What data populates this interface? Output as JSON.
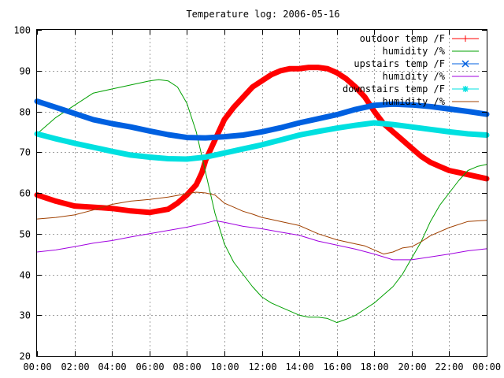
{
  "chart_data": {
    "type": "line",
    "title": "Temperature log: 2006-05-16",
    "xlabel": "",
    "ylabel": "",
    "xlim": [
      0,
      24
    ],
    "ylim": [
      20,
      100
    ],
    "grid": true,
    "legend_position": "top-right",
    "x_tick_labels": [
      "00:00",
      "02:00",
      "04:00",
      "06:00",
      "08:00",
      "10:00",
      "12:00",
      "14:00",
      "16:00",
      "18:00",
      "20:00",
      "22:00",
      "00:00"
    ],
    "y_tick_labels": [
      "20",
      "30",
      "40",
      "50",
      "60",
      "70",
      "80",
      "90",
      "100"
    ],
    "series": [
      {
        "name": "outdoor temp /F",
        "color": "#ff0000",
        "marker": "plus",
        "thick": true,
        "x": [
          0,
          1,
          2,
          3,
          4,
          5,
          6,
          7,
          7.5,
          8,
          8.5,
          8.8,
          9,
          9.5,
          10,
          10.5,
          11,
          11.5,
          12,
          12.5,
          13,
          13.5,
          14,
          14.5,
          15,
          15.5,
          16,
          16.5,
          17,
          17.5,
          18,
          18.5,
          19,
          19.5,
          20,
          20.5,
          21,
          21.5,
          22,
          22.5,
          23,
          23.5,
          24
        ],
        "y": [
          59.5,
          58,
          56.8,
          56.5,
          56.2,
          55.6,
          55.2,
          56,
          57.5,
          59.5,
          62,
          65,
          68,
          73,
          78,
          81,
          83.5,
          86,
          87.5,
          89,
          90,
          90.5,
          90.5,
          90.8,
          90.8,
          90.5,
          89.5,
          88,
          86,
          83.5,
          80,
          77,
          75,
          73,
          71,
          69,
          67.5,
          66.5,
          65.5,
          65,
          64.5,
          64,
          63.5
        ]
      },
      {
        "name": "humidity /%",
        "color": "#00a000",
        "thick": false,
        "x": [
          0,
          1,
          2,
          3,
          4,
          5,
          6,
          6.5,
          7,
          7.5,
          8,
          8.5,
          9,
          9.5,
          10,
          10.5,
          11,
          11.5,
          12,
          12.5,
          13,
          13.5,
          14,
          14.5,
          15,
          15.5,
          16,
          16.5,
          17,
          17.5,
          18,
          18.5,
          19,
          19.5,
          20,
          20.5,
          21,
          21.5,
          22,
          22.5,
          23,
          23.5,
          24
        ],
        "y": [
          74.5,
          78.5,
          81.5,
          84.5,
          85.5,
          86.5,
          87.5,
          87.8,
          87.5,
          86,
          82,
          75,
          65,
          55,
          47.5,
          43,
          40,
          37,
          34.5,
          33,
          32,
          31,
          30,
          29.5,
          29.5,
          29.2,
          28.2,
          29,
          30,
          31.5,
          33,
          35,
          37,
          40,
          44,
          48,
          53,
          57,
          60,
          63,
          65.5,
          66.5,
          67
        ]
      },
      {
        "name": "upstairs temp /F",
        "color": "#0060e0",
        "marker": "cross",
        "thick": true,
        "x": [
          0,
          1,
          2,
          3,
          4,
          5,
          6,
          7,
          8,
          9,
          10,
          11,
          12,
          13,
          14,
          15,
          16,
          17,
          18,
          19,
          20,
          21,
          22,
          23,
          24
        ],
        "y": [
          82.5,
          81,
          79.5,
          78,
          77,
          76.2,
          75.2,
          74.3,
          73.6,
          73.5,
          73.8,
          74.2,
          75,
          76,
          77.2,
          78.2,
          79.2,
          80.5,
          81.5,
          81.8,
          81.6,
          81.2,
          80.6,
          80,
          79.3
        ]
      },
      {
        "name": "humidity /%",
        "color": "#a000e0",
        "thick": false,
        "x": [
          0,
          1,
          2,
          3,
          4,
          5,
          6,
          7,
          8,
          9,
          9.5,
          10,
          11,
          12,
          13,
          14,
          15,
          16,
          17,
          18,
          19,
          20,
          21,
          22,
          23,
          24
        ],
        "y": [
          45.5,
          46,
          46.8,
          47.7,
          48.3,
          49.2,
          50,
          50.8,
          51.6,
          52.6,
          53.2,
          52.8,
          51.8,
          51.2,
          50.4,
          49.6,
          48.2,
          47.2,
          46.2,
          45,
          43.6,
          43.6,
          44.3,
          45,
          45.8,
          46.3
        ]
      },
      {
        "name": "downstairs temp /F",
        "color": "#00e0e0",
        "marker": "star",
        "thick": true,
        "x": [
          0,
          1,
          2,
          3,
          4,
          5,
          6,
          7,
          8,
          9,
          10,
          11,
          12,
          13,
          14,
          15,
          16,
          17,
          18,
          19,
          20,
          21,
          22,
          23,
          24
        ],
        "y": [
          74.5,
          73.3,
          72.2,
          71.2,
          70.2,
          69.3,
          68.8,
          68.4,
          68.3,
          68.8,
          69.8,
          70.8,
          71.8,
          73,
          74.2,
          75.1,
          75.9,
          76.6,
          77.2,
          76.8,
          76.2,
          75.6,
          75,
          74.5,
          74.2
        ]
      },
      {
        "name": "humidity /%",
        "color": "#a04000",
        "thick": false,
        "x": [
          0,
          1,
          2,
          3,
          4,
          5,
          6,
          7,
          8,
          8.5,
          9,
          9.5,
          10,
          10.5,
          11,
          11.5,
          12,
          12.5,
          13,
          14,
          15,
          16,
          16.5,
          17,
          17.5,
          18,
          18.5,
          19,
          19.5,
          20,
          20.5,
          21,
          22,
          23,
          24
        ],
        "y": [
          53.6,
          54,
          54.6,
          55.8,
          57.2,
          58,
          58.4,
          59,
          59.8,
          60.2,
          60,
          59.5,
          57.5,
          56.5,
          55.5,
          54.8,
          54,
          53.5,
          53,
          52,
          50,
          48.5,
          48,
          47.5,
          47,
          46,
          45,
          45.5,
          46.5,
          46.8,
          48,
          49.5,
          51.5,
          53,
          53.3
        ]
      }
    ]
  }
}
